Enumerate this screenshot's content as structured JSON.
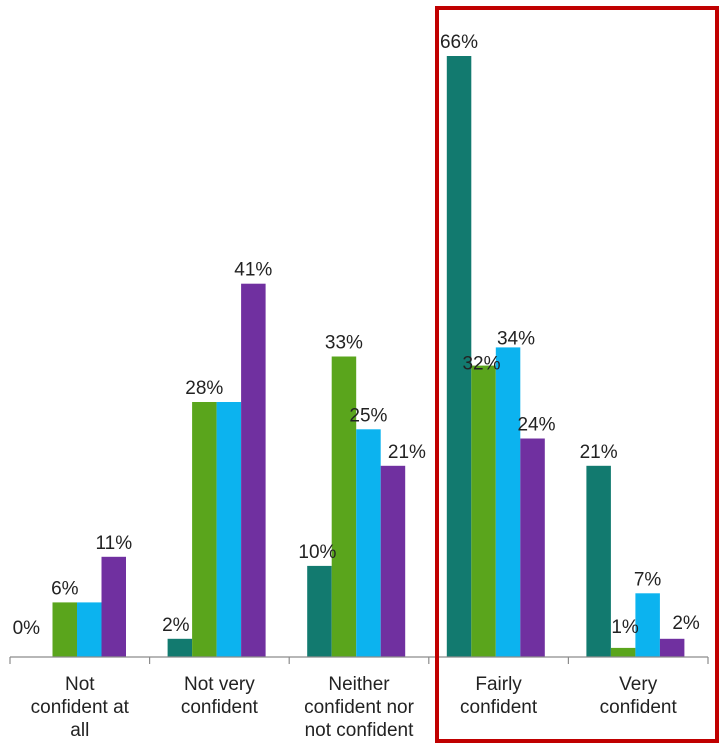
{
  "chart_data": {
    "type": "bar",
    "categories": [
      [
        "Not",
        "confident at",
        "all"
      ],
      [
        "Not very",
        "confident"
      ],
      [
        "Neither",
        "confident nor",
        "not confident"
      ],
      [
        "Fairly",
        "confident"
      ],
      [
        "Very",
        "confident"
      ]
    ],
    "series": [
      {
        "color": "#127a6f",
        "values": [
          0,
          2,
          10,
          66,
          21
        ]
      },
      {
        "color": "#5aa51c",
        "values": [
          6,
          28,
          33,
          32,
          1
        ]
      },
      {
        "color": "#0cb3ef",
        "values": [
          6,
          28,
          25,
          34,
          7
        ]
      },
      {
        "color": "#7030a0",
        "values": [
          11,
          41,
          21,
          24,
          2
        ]
      }
    ],
    "data_labels": [
      [
        "0%",
        "6%",
        "",
        "11%"
      ],
      [
        "2%",
        "28%",
        "",
        "41%"
      ],
      [
        "10%",
        "33%",
        "25%",
        "21%"
      ],
      [
        "66%",
        "32%",
        "34%",
        "24%"
      ],
      [
        "21%",
        "1%",
        "7%",
        "2%"
      ]
    ],
    "ylim": [
      0,
      66
    ],
    "grid": false,
    "legend": "none",
    "highlight": {
      "categories": [
        "Fairly confident",
        "Very confident"
      ],
      "color": "#c00000"
    }
  }
}
